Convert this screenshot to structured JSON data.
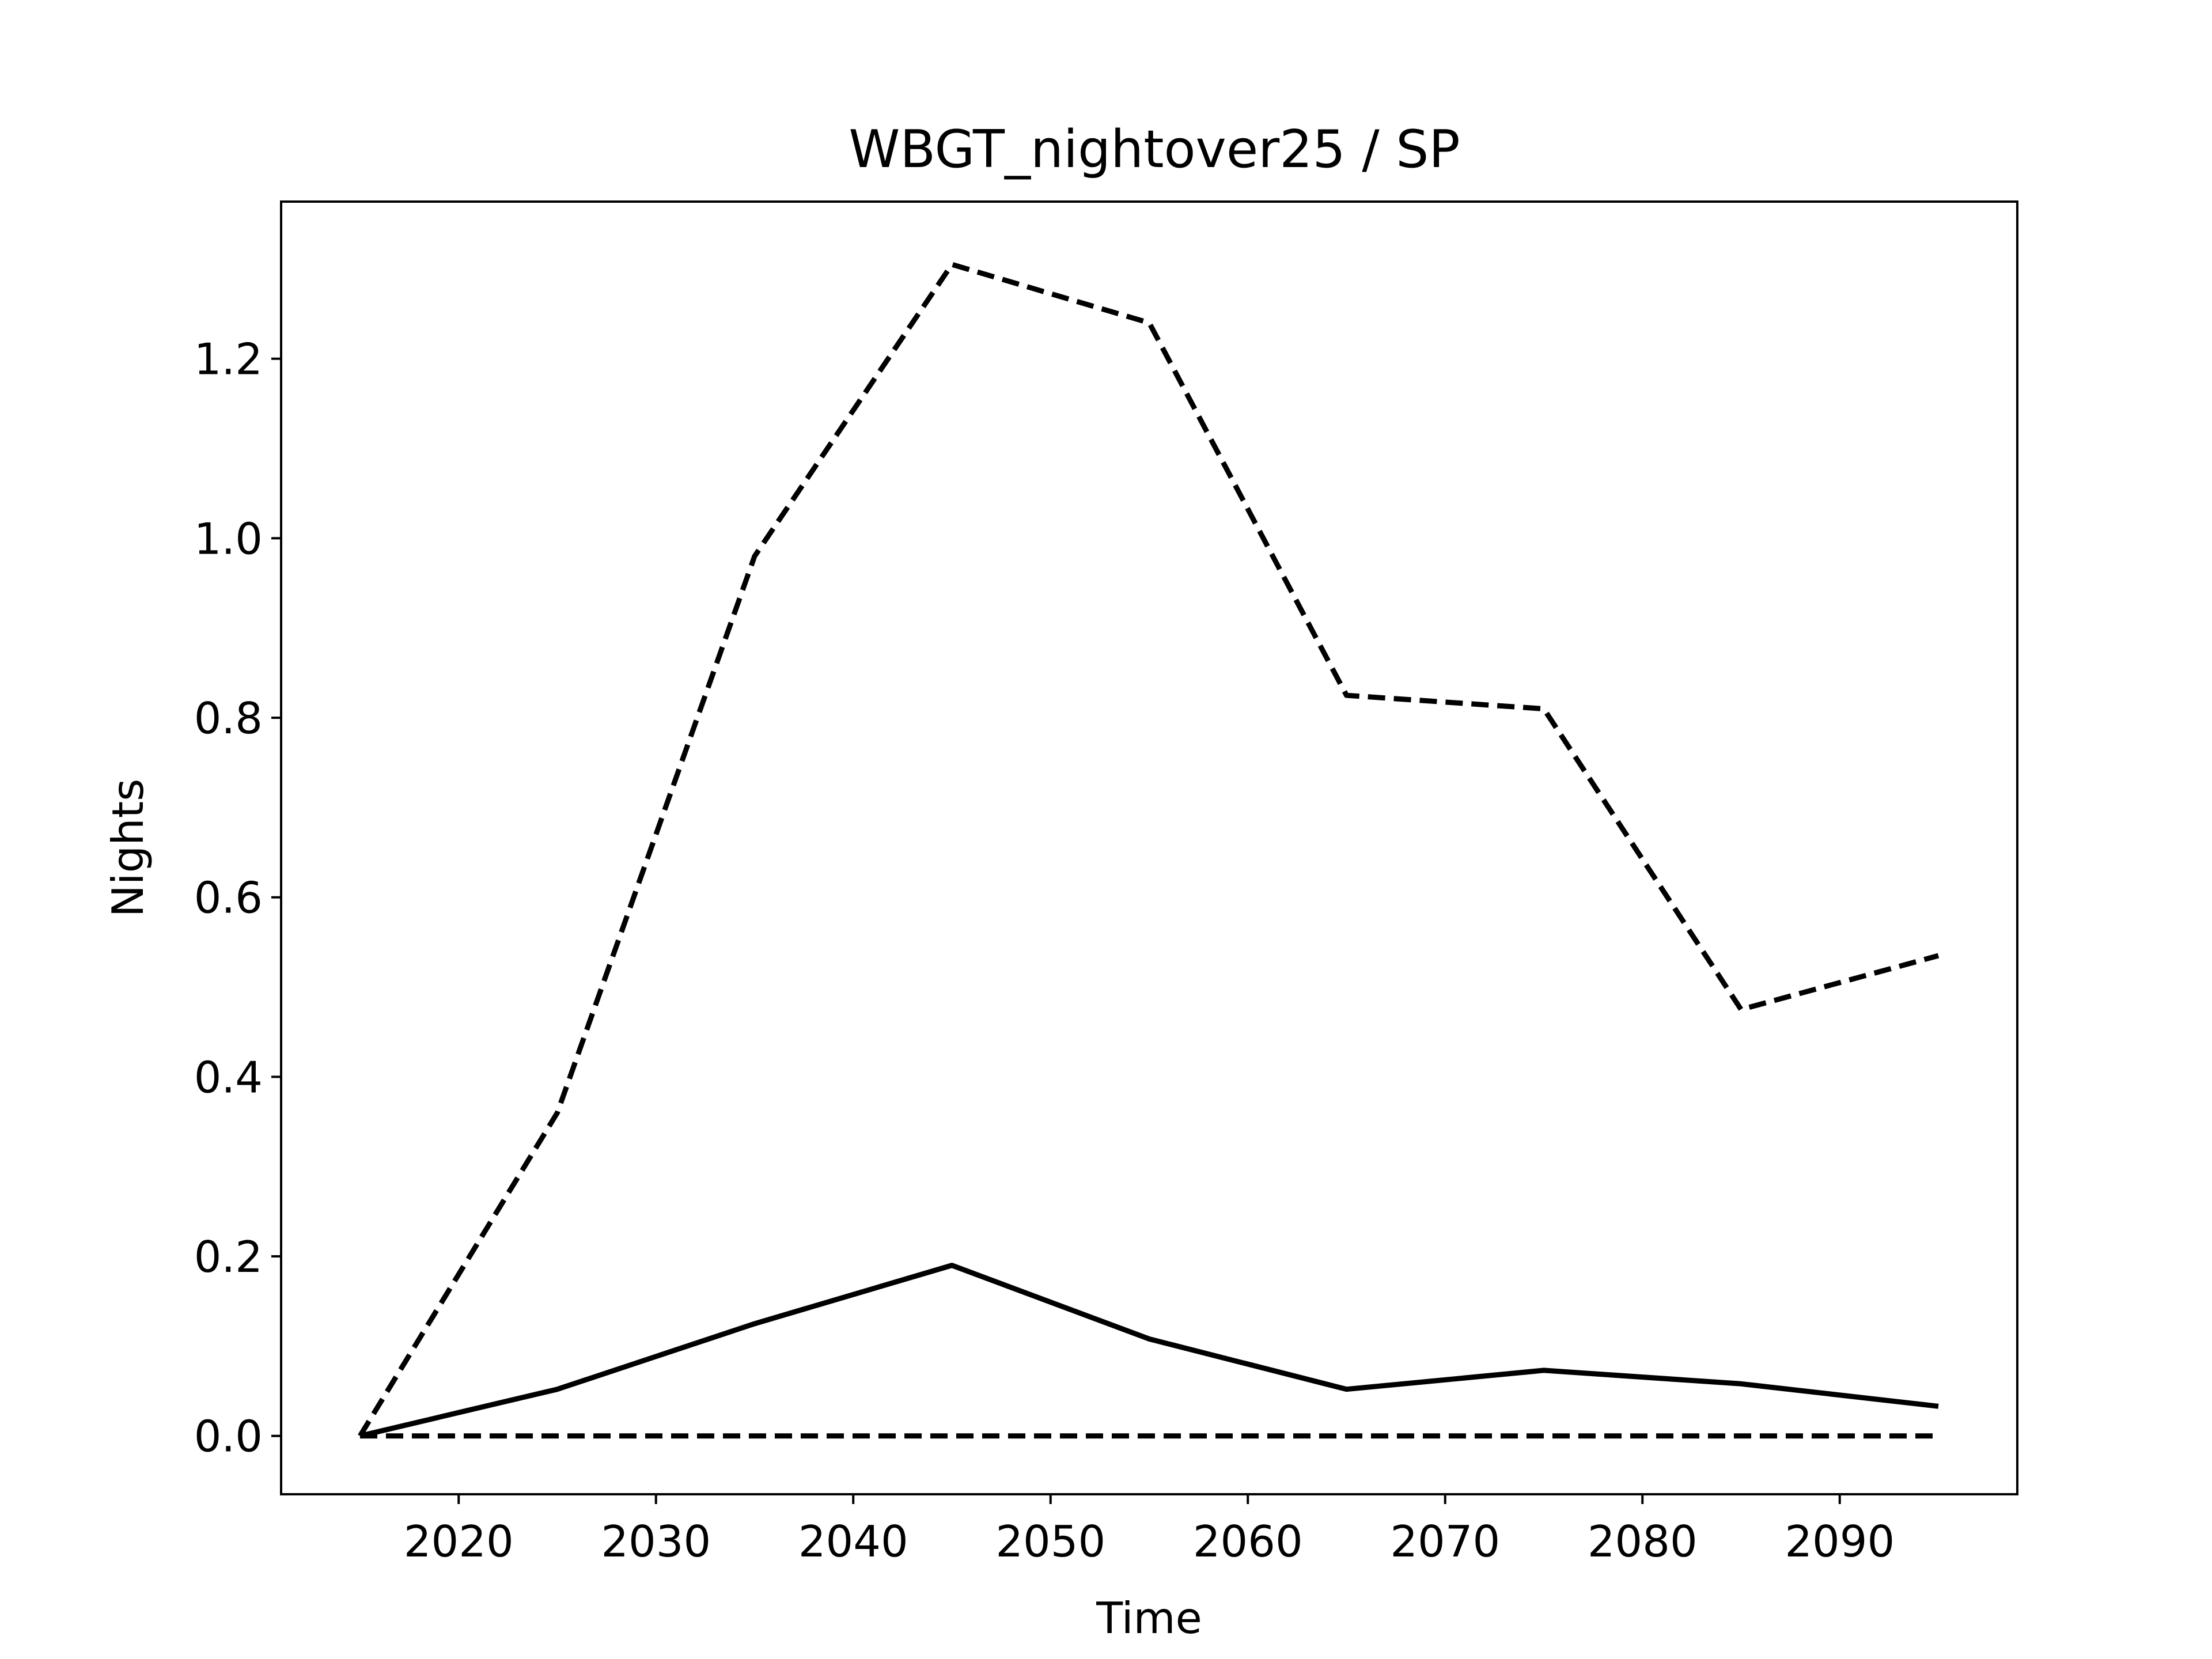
{
  "chart_data": {
    "type": "line",
    "title": "WBGT_nightover25 / SP",
    "xlabel": "Time",
    "ylabel": "Nights",
    "x": [
      2015,
      2025,
      2035,
      2045,
      2055,
      2065,
      2075,
      2085,
      2095
    ],
    "xlim": [
      2011,
      2099
    ],
    "ylim": [
      -0.065,
      1.375
    ],
    "xticks": [
      2020,
      2030,
      2040,
      2050,
      2060,
      2070,
      2080,
      2090
    ],
    "yticks": [
      0.0,
      0.2,
      0.4,
      0.6,
      0.8,
      1.0,
      1.2
    ],
    "ytick_labels": [
      "0.0",
      "0.2",
      "0.4",
      "0.6",
      "0.8",
      "1.0",
      "1.2"
    ],
    "grid": false,
    "series": [
      {
        "style": "dashed",
        "color": "#000000",
        "values": [
          0.0,
          0.36,
          0.98,
          1.305,
          1.24,
          0.825,
          0.81,
          0.475,
          0.535
        ]
      },
      {
        "style": "solid",
        "color": "#000000",
        "values": [
          0.0,
          0.052,
          0.125,
          0.19,
          0.108,
          0.052,
          0.073,
          0.058,
          0.033
        ]
      },
      {
        "style": "dashed",
        "color": "#000000",
        "values": [
          0.0,
          0.0,
          0.0,
          0.0,
          0.0,
          0.0,
          0.0,
          0.0,
          0.0
        ]
      }
    ]
  }
}
